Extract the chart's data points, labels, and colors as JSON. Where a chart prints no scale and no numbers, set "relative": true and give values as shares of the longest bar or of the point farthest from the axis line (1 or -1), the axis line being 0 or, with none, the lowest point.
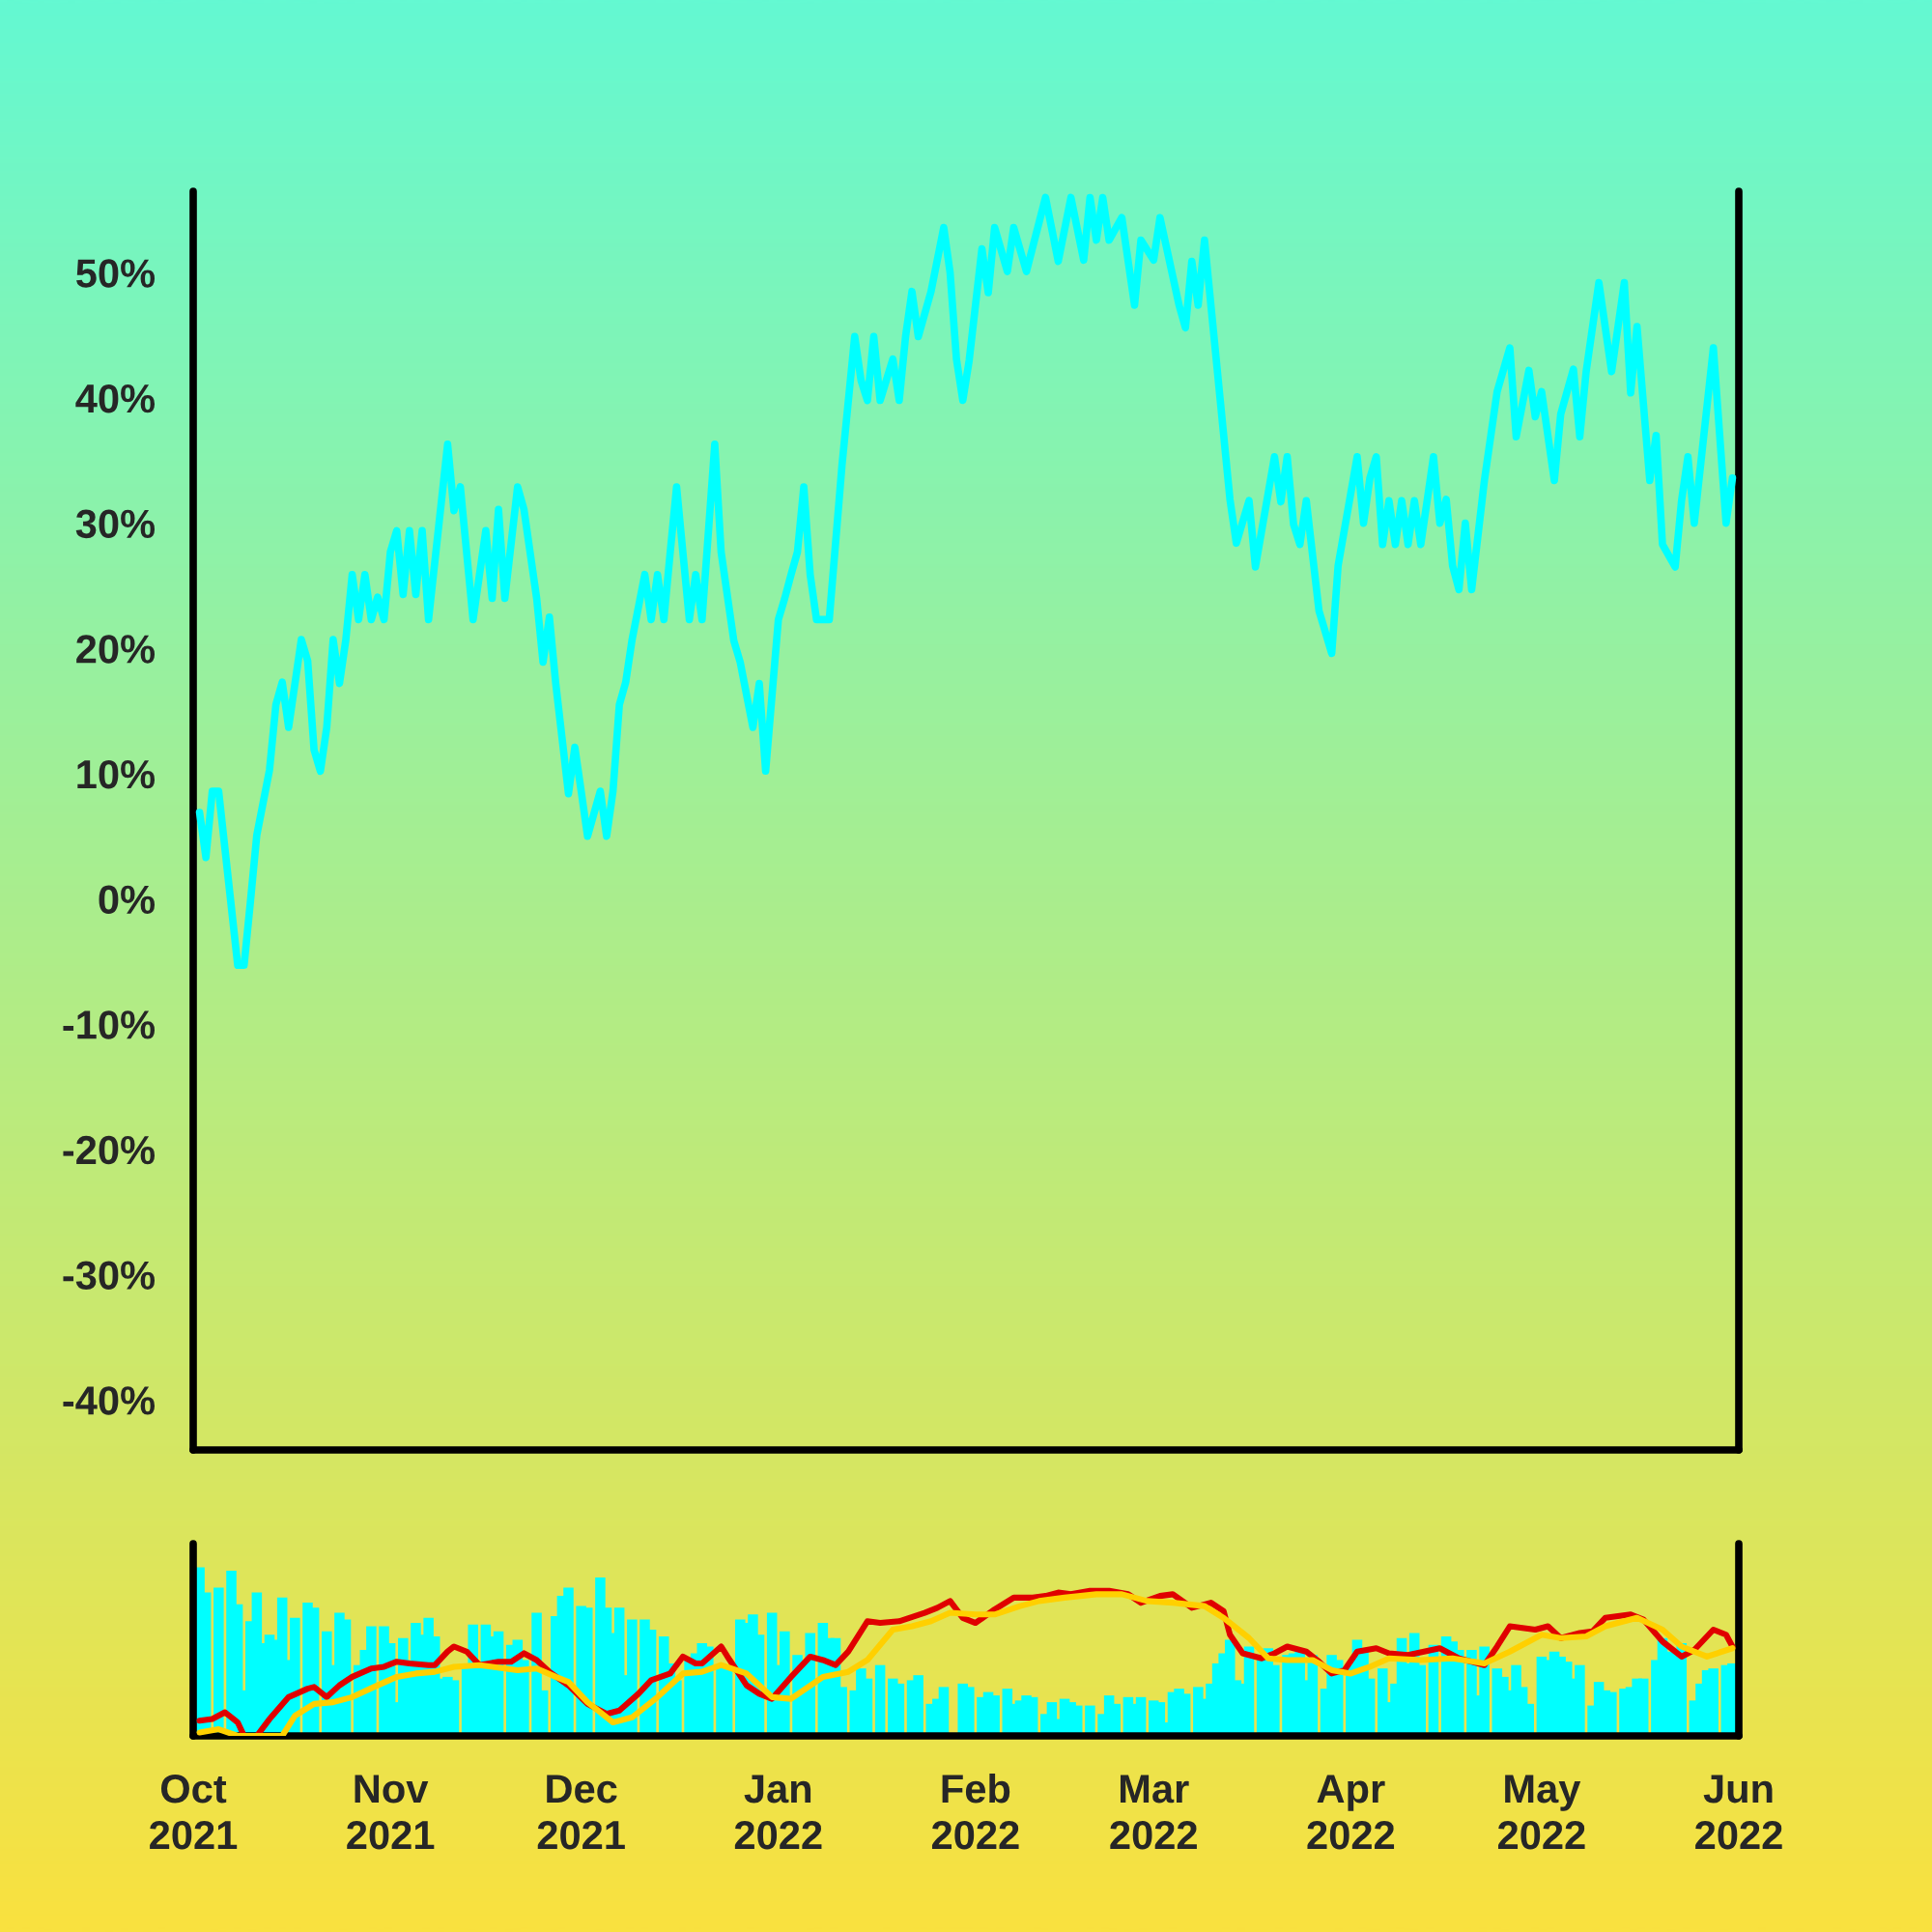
{
  "chart_data": [
    {
      "type": "line",
      "tick_labels": "y",
      "xlim": [
        "2021-10-01",
        "2022-06-01"
      ],
      "ylim": [
        -44,
        56.5
      ],
      "yticks": [
        {
          "value": -40,
          "label": "-40%"
        },
        {
          "value": -30,
          "label": "-30%"
        },
        {
          "value": -20,
          "label": "-20%"
        },
        {
          "value": -10,
          "label": "-10%"
        },
        {
          "value": 0,
          "label": "0%"
        },
        {
          "value": 10,
          "label": "10%"
        },
        {
          "value": 20,
          "label": "20%"
        },
        {
          "value": 30,
          "label": "30%"
        },
        {
          "value": 40,
          "label": "40%"
        },
        {
          "value": 50,
          "label": "50%"
        }
      ],
      "x": [
        "2021-10-02",
        "2021-10-03",
        "2021-10-04",
        "2021-10-05",
        "2021-10-08",
        "2021-10-09",
        "2021-10-10",
        "2021-10-11",
        "2021-10-13",
        "2021-10-14",
        "2021-10-15",
        "2021-10-16",
        "2021-10-18",
        "2021-10-19",
        "2021-10-20",
        "2021-10-21",
        "2021-10-22",
        "2021-10-23",
        "2021-10-24",
        "2021-10-25",
        "2021-10-26",
        "2021-10-27",
        "2021-10-28",
        "2021-10-29",
        "2021-10-30",
        "2021-10-31",
        "2021-11-01",
        "2021-11-02",
        "2021-11-03",
        "2021-11-04",
        "2021-11-05",
        "2021-11-06",
        "2021-11-07",
        "2021-11-10",
        "2021-11-11",
        "2021-11-12",
        "2021-11-14",
        "2021-11-16",
        "2021-11-17",
        "2021-11-18",
        "2021-11-19",
        "2021-11-21",
        "2021-11-22",
        "2021-11-24",
        "2021-11-25",
        "2021-11-26",
        "2021-11-27",
        "2021-11-29",
        "2021-11-30",
        "2021-12-01",
        "2021-12-02",
        "2021-12-04",
        "2021-12-05",
        "2021-12-06",
        "2021-12-07",
        "2021-12-08",
        "2021-12-09",
        "2021-12-11",
        "2021-12-12",
        "2021-12-13",
        "2021-12-14",
        "2021-12-15",
        "2021-12-16",
        "2021-12-18",
        "2021-12-19",
        "2021-12-20",
        "2021-12-22",
        "2021-12-23",
        "2021-12-25",
        "2021-12-26",
        "2021-12-28",
        "2021-12-29",
        "2021-12-30",
        "2022-01-01",
        "2022-01-02",
        "2022-01-03",
        "2022-01-04",
        "2022-01-05",
        "2022-01-06",
        "2022-01-07",
        "2022-01-09",
        "2022-01-11",
        "2022-01-13",
        "2022-01-14",
        "2022-01-15",
        "2022-01-16",
        "2022-01-17",
        "2022-01-19",
        "2022-01-20",
        "2022-01-21",
        "2022-01-22",
        "2022-01-23",
        "2022-01-25",
        "2022-01-27",
        "2022-01-28",
        "2022-01-29",
        "2022-01-30",
        "2022-01-31",
        "2022-02-02",
        "2022-02-03",
        "2022-02-04",
        "2022-02-06",
        "2022-02-07",
        "2022-02-09",
        "2022-02-12",
        "2022-02-14",
        "2022-02-16",
        "2022-02-18",
        "2022-02-19",
        "2022-02-20",
        "2022-02-21",
        "2022-02-22",
        "2022-02-24",
        "2022-02-26",
        "2022-02-27",
        "2022-03-01",
        "2022-03-02",
        "2022-03-05",
        "2022-03-06",
        "2022-03-07",
        "2022-03-08",
        "2022-03-09",
        "2022-03-13",
        "2022-03-14",
        "2022-03-16",
        "2022-03-17",
        "2022-03-20",
        "2022-03-21",
        "2022-03-22",
        "2022-03-23",
        "2022-03-24",
        "2022-03-25",
        "2022-03-27",
        "2022-03-29",
        "2022-03-30",
        "2022-04-02",
        "2022-04-03",
        "2022-04-04",
        "2022-04-05",
        "2022-04-06",
        "2022-04-07",
        "2022-04-08",
        "2022-04-09",
        "2022-04-10",
        "2022-04-11",
        "2022-04-12",
        "2022-04-14",
        "2022-04-15",
        "2022-04-16",
        "2022-04-17",
        "2022-04-18",
        "2022-04-19",
        "2022-04-20",
        "2022-04-22",
        "2022-04-24",
        "2022-04-26",
        "2022-04-27",
        "2022-04-29",
        "2022-04-30",
        "2022-05-01",
        "2022-05-03",
        "2022-05-04",
        "2022-05-06",
        "2022-05-07",
        "2022-05-08",
        "2022-05-10",
        "2022-05-12",
        "2022-05-14",
        "2022-05-15",
        "2022-05-16",
        "2022-05-18",
        "2022-05-19",
        "2022-05-20",
        "2022-05-22",
        "2022-05-23",
        "2022-05-24",
        "2022-05-25",
        "2022-05-28",
        "2022-05-30",
        "2022-05-31"
      ],
      "series": [
        {
          "color": "#00ffff",
          "values": [
            6.9,
            3.3,
            8.6,
            8.6,
            -5.3,
            -5.3,
            -0.2,
            5.1,
            10.3,
            15.5,
            17.3,
            13.7,
            20.7,
            19,
            11.9,
            10.2,
            13.7,
            20.7,
            17.2,
            20.7,
            25.9,
            22.3,
            25.9,
            22.3,
            24.1,
            22.3,
            27.7,
            29.4,
            24.3,
            29.4,
            24.3,
            29.4,
            22.3,
            36.3,
            31,
            32.9,
            22.3,
            29.4,
            24,
            31.1,
            24,
            32.9,
            31.1,
            24,
            18.9,
            22.5,
            17.2,
            8.4,
            12.1,
            8.6,
            5,
            8.6,
            5,
            8.6,
            15.5,
            17.3,
            20.7,
            25.9,
            22.3,
            25.9,
            22.3,
            27.7,
            32.9,
            22.3,
            25.9,
            22.3,
            36.3,
            27.7,
            20.6,
            18.9,
            13.7,
            17.2,
            10.2,
            22.3,
            24,
            25.9,
            27.7,
            32.9,
            25.9,
            22.3,
            22.3,
            34.6,
            44.9,
            41.4,
            39.8,
            44.9,
            39.8,
            43.1,
            39.8,
            44.9,
            48.5,
            44.9,
            48.5,
            53.6,
            50,
            43.1,
            39.8,
            43,
            51.9,
            48.4,
            53.6,
            50.1,
            53.6,
            50.1,
            56,
            50.9,
            56,
            51,
            56,
            52.6,
            56,
            52.6,
            54.4,
            47.4,
            52.6,
            51,
            54.4,
            47.4,
            45.6,
            50.9,
            47.4,
            52.6,
            31.9,
            28.4,
            31.8,
            26.5,
            35.3,
            31.7,
            35.3,
            29.9,
            28.3,
            31.8,
            23,
            19.6,
            26.6,
            35.3,
            30,
            33.6,
            35.3,
            28.3,
            31.8,
            28.3,
            31.8,
            28.3,
            31.8,
            28.3,
            35.3,
            30,
            31.9,
            26.6,
            24.7,
            30,
            24.7,
            33.4,
            40.5,
            44,
            36.9,
            42.2,
            38.5,
            40.5,
            33.4,
            38.7,
            42.3,
            36.9,
            42.1,
            49.2,
            42.1,
            49.2,
            40.4,
            45.7,
            33.4,
            37,
            28.3,
            26.5,
            31.8,
            35.3,
            30,
            44,
            30,
            33.6
          ]
        }
      ]
    },
    {
      "type": "bar",
      "relative": true,
      "tick_labels": "x",
      "xlim": [
        "2021-10-01",
        "2022-06-01"
      ],
      "xticks": [
        {
          "value": "2021-10-01",
          "label": "Oct\n2021"
        },
        {
          "value": "2021-11-01",
          "label": "Nov\n2021"
        },
        {
          "value": "2021-12-01",
          "label": "Dec\n2021"
        },
        {
          "value": "2022-01-01",
          "label": "Jan\n2022"
        },
        {
          "value": "2022-02-01",
          "label": "Feb\n2022"
        },
        {
          "value": "2022-03-01",
          "label": "Mar\n2022"
        },
        {
          "value": "2022-04-01",
          "label": "Apr\n2022"
        },
        {
          "value": "2022-05-01",
          "label": "May\n2022"
        },
        {
          "value": "2022-06-01",
          "label": "Jun\n2022"
        }
      ],
      "series": [
        {
          "type": "bar",
          "color": "#00ffff",
          "x": [
            "2021-10-02",
            "2021-10-03",
            "2021-10-05",
            "2021-10-07",
            "2021-10-08",
            "2021-10-09",
            "2021-10-10",
            "2021-10-11",
            "2021-10-12",
            "2021-10-13",
            "2021-10-14",
            "2021-10-15",
            "2021-10-16",
            "2021-10-17",
            "2021-10-19",
            "2021-10-20",
            "2021-10-22",
            "2021-10-23",
            "2021-10-24",
            "2021-10-25",
            "2021-10-27",
            "2021-10-28",
            "2021-10-29",
            "2021-10-31",
            "2021-11-01",
            "2021-11-02",
            "2021-11-03",
            "2021-11-04",
            "2021-11-05",
            "2021-11-06",
            "2021-11-07",
            "2021-11-08",
            "2021-11-09",
            "2021-11-10",
            "2021-11-11",
            "2021-11-13",
            "2021-11-14",
            "2021-11-15",
            "2021-11-16",
            "2021-11-17",
            "2021-11-18",
            "2021-11-20",
            "2021-11-21",
            "2021-11-22",
            "2021-11-24",
            "2021-11-25",
            "2021-11-27",
            "2021-11-28",
            "2021-11-29",
            "2021-12-01",
            "2021-12-02",
            "2021-12-04",
            "2021-12-05",
            "2021-12-06",
            "2021-12-07",
            "2021-12-08",
            "2021-12-09",
            "2021-12-11",
            "2021-12-12",
            "2021-12-14",
            "2021-12-15",
            "2021-12-16",
            "2021-12-18",
            "2021-12-19",
            "2021-12-20",
            "2021-12-21",
            "2021-12-23",
            "2021-12-24",
            "2021-12-26",
            "2021-12-27",
            "2021-12-28",
            "2021-12-29",
            "2021-12-31",
            "2022-01-01",
            "2022-01-02",
            "2022-01-04",
            "2022-01-05",
            "2022-01-06",
            "2022-01-08",
            "2022-01-09",
            "2022-01-10",
            "2022-01-11",
            "2022-01-13",
            "2022-01-14",
            "2022-01-15",
            "2022-01-17",
            "2022-01-19",
            "2022-01-20",
            "2022-01-22",
            "2022-01-23",
            "2022-01-25",
            "2022-01-26",
            "2022-01-27",
            "2022-01-30",
            "2022-01-31",
            "2022-02-02",
            "2022-02-03",
            "2022-02-04",
            "2022-02-06",
            "2022-02-07",
            "2022-02-08",
            "2022-02-09",
            "2022-02-10",
            "2022-02-12",
            "2022-02-13",
            "2022-02-14",
            "2022-02-15",
            "2022-02-16",
            "2022-02-17",
            "2022-02-19",
            "2022-02-21",
            "2022-02-22",
            "2022-02-23",
            "2022-02-25",
            "2022-02-26",
            "2022-02-27",
            "2022-03-01",
            "2022-03-02",
            "2022-03-03",
            "2022-03-04",
            "2022-03-05",
            "2022-03-06",
            "2022-03-08",
            "2022-03-09",
            "2022-03-10",
            "2022-03-11",
            "2022-03-12",
            "2022-03-13",
            "2022-03-14",
            "2022-03-15",
            "2022-03-16",
            "2022-03-18",
            "2022-03-19",
            "2022-03-20",
            "2022-03-22",
            "2022-03-23",
            "2022-03-24",
            "2022-03-25",
            "2022-03-26",
            "2022-03-28",
            "2022-03-29",
            "2022-03-30",
            "2022-04-01",
            "2022-04-02",
            "2022-04-03",
            "2022-04-04",
            "2022-04-06",
            "2022-04-07",
            "2022-04-08",
            "2022-04-09",
            "2022-04-10",
            "2022-04-11",
            "2022-04-12",
            "2022-04-14",
            "2022-04-16",
            "2022-04-17",
            "2022-04-18",
            "2022-04-20",
            "2022-04-21",
            "2022-04-22",
            "2022-04-24",
            "2022-04-25",
            "2022-04-26",
            "2022-04-27",
            "2022-04-28",
            "2022-04-29",
            "2022-05-01",
            "2022-05-02",
            "2022-05-03",
            "2022-05-04",
            "2022-05-05",
            "2022-05-06",
            "2022-05-07",
            "2022-05-09",
            "2022-05-10",
            "2022-05-11",
            "2022-05-12",
            "2022-05-14",
            "2022-05-15",
            "2022-05-16",
            "2022-05-17",
            "2022-05-19",
            "2022-05-20",
            "2022-05-21",
            "2022-05-22",
            "2022-05-23",
            "2022-05-25",
            "2022-05-26",
            "2022-05-27",
            "2022-05-28",
            "2022-05-30",
            "2022-05-31"
          ],
          "values": [
            1.0,
            0.85,
            0.88,
            0.98,
            0.78,
            0.27,
            0.68,
            0.85,
            0.55,
            0.6,
            0.57,
            0.82,
            0.45,
            0.7,
            0.79,
            0.76,
            0.62,
            0.42,
            0.73,
            0.69,
            0.42,
            0.51,
            0.65,
            0.65,
            0.55,
            0.2,
            0.58,
            0.45,
            0.67,
            0.6,
            0.7,
            0.59,
            0.34,
            0.35,
            0.33,
            0.42,
            0.66,
            0.42,
            0.66,
            0.59,
            0.62,
            0.54,
            0.57,
            0.45,
            0.73,
            0.27,
            0.71,
            0.83,
            0.88,
            0.77,
            0.76,
            0.94,
            0.76,
            0.61,
            0.76,
            0.36,
            0.69,
            0.69,
            0.63,
            0.59,
            0.43,
            0.33,
            0.45,
            0.49,
            0.55,
            0.53,
            0.42,
            0.42,
            0.69,
            0.67,
            0.72,
            0.6,
            0.73,
            0.42,
            0.62,
            0.48,
            0.42,
            0.61,
            0.67,
            0.58,
            0.58,
            0.29,
            0.27,
            0.4,
            0.34,
            0.42,
            0.34,
            0.31,
            0.33,
            0.36,
            0.19,
            0.22,
            0.29,
            0.31,
            0.29,
            0.23,
            0.26,
            0.24,
            0.28,
            0.19,
            0.21,
            0.24,
            0.23,
            0.13,
            0.2,
            0.1,
            0.22,
            0.2,
            0.18,
            0.18,
            0.13,
            0.24,
            0.19,
            0.23,
            0.19,
            0.23,
            0.21,
            0.2,
            0.08,
            0.26,
            0.28,
            0.25,
            0.29,
            0.22,
            0.31,
            0.43,
            0.49,
            0.57,
            0.33,
            0.31,
            0.53,
            0.45,
            0.52,
            0.42,
            0.48,
            0.49,
            0.51,
            0.33,
            0.48,
            0.28,
            0.48,
            0.45,
            0.42,
            0.57,
            0.51,
            0.34,
            0.4,
            0.2,
            0.31,
            0.58,
            0.43,
            0.61,
            0.42,
            0.54,
            0.59,
            0.56,
            0.51,
            0.51,
            0.24,
            0.53,
            0.4,
            0.35,
            0.27,
            0.42,
            0.29,
            0.19,
            0.47,
            0.45,
            0.5,
            0.47,
            0.44,
            0.34,
            0.42,
            0.18,
            0.32,
            0.27,
            0.26,
            0.28,
            0.29,
            0.34,
            0.34,
            0.45,
            0.58,
            0.5,
            0.49,
            0.55,
            0.21,
            0.31,
            0.39,
            0.4,
            0.42,
            0.43
          ]
        },
        {
          "type": "line",
          "color": "#e00000",
          "x": [
            "2021-10-02",
            "2021-10-04",
            "2021-10-06",
            "2021-10-08",
            "2021-10-09",
            "2021-10-11",
            "2021-10-13",
            "2021-10-16",
            "2021-10-19",
            "2021-10-20",
            "2021-10-22",
            "2021-10-24",
            "2021-10-26",
            "2021-10-29",
            "2021-10-31",
            "2021-11-02",
            "2021-11-04",
            "2021-11-07",
            "2021-11-08",
            "2021-11-10",
            "2021-11-11",
            "2021-11-13",
            "2021-11-15",
            "2021-11-18",
            "2021-11-20",
            "2021-11-22",
            "2021-11-24",
            "2021-11-26",
            "2021-11-29",
            "2021-12-02",
            "2021-12-05",
            "2021-12-07",
            "2021-12-10",
            "2021-12-12",
            "2021-12-15",
            "2021-12-17",
            "2021-12-19",
            "2021-12-20",
            "2021-12-23",
            "2021-12-24",
            "2021-12-27",
            "2021-12-29",
            "2021-12-31",
            "2022-01-03",
            "2022-01-06",
            "2022-01-08",
            "2022-01-10",
            "2022-01-12",
            "2022-01-15",
            "2022-01-17",
            "2022-01-20",
            "2022-01-24",
            "2022-01-26",
            "2022-01-28",
            "2022-01-30",
            "2022-02-01",
            "2022-02-04",
            "2022-02-07",
            "2022-02-10",
            "2022-02-12",
            "2022-02-14",
            "2022-02-16",
            "2022-02-19",
            "2022-02-22",
            "2022-02-25",
            "2022-02-27",
            "2022-03-02",
            "2022-03-04",
            "2022-03-07",
            "2022-03-10",
            "2022-03-12",
            "2022-03-13",
            "2022-03-15",
            "2022-03-18",
            "2022-03-20",
            "2022-03-22",
            "2022-03-25",
            "2022-03-27",
            "2022-03-29",
            "2022-03-31",
            "2022-04-02",
            "2022-04-05",
            "2022-04-07",
            "2022-04-10",
            "2022-04-15",
            "2022-04-18",
            "2022-04-22",
            "2022-04-24",
            "2022-04-26",
            "2022-04-30",
            "2022-05-02",
            "2022-05-04",
            "2022-05-07",
            "2022-05-09",
            "2022-05-11",
            "2022-05-15",
            "2022-05-17",
            "2022-05-20",
            "2022-05-23",
            "2022-05-25",
            "2022-05-28",
            "2022-05-30",
            "2022-05-31"
          ],
          "values": [
            0.09,
            0.1,
            0.14,
            0.08,
            0,
            0,
            0.1,
            0.23,
            0.28,
            0.29,
            0.23,
            0.3,
            0.35,
            0.4,
            0.41,
            0.44,
            0.43,
            0.42,
            0.42,
            0.5,
            0.53,
            0.5,
            0.42,
            0.44,
            0.44,
            0.49,
            0.45,
            0.38,
            0.3,
            0.19,
            0.13,
            0.15,
            0.25,
            0.33,
            0.37,
            0.47,
            0.43,
            0.43,
            0.53,
            0.47,
            0.3,
            0.25,
            0.22,
            0.35,
            0.47,
            0.45,
            0.42,
            0.5,
            0.68,
            0.67,
            0.68,
            0.73,
            0.76,
            0.8,
            0.7,
            0.67,
            0.75,
            0.82,
            0.82,
            0.83,
            0.85,
            0.84,
            0.86,
            0.86,
            0.84,
            0.79,
            0.83,
            0.84,
            0.76,
            0.79,
            0.74,
            0.6,
            0.49,
            0.46,
            0.49,
            0.53,
            0.5,
            0.44,
            0.37,
            0.39,
            0.5,
            0.52,
            0.49,
            0.48,
            0.52,
            0.46,
            0.42,
            0.53,
            0.65,
            0.63,
            0.65,
            0.58,
            0.61,
            0.62,
            0.7,
            0.72,
            0.69,
            0.56,
            0.47,
            0.51,
            0.63,
            0.6,
            0.53
          ]
        },
        {
          "type": "line",
          "color": "#ffd000",
          "x": [
            "2021-10-02",
            "2021-10-05",
            "2021-10-08",
            "2021-10-15",
            "2021-10-17",
            "2021-10-20",
            "2021-10-23",
            "2021-10-26",
            "2021-10-30",
            "2021-11-02",
            "2021-11-05",
            "2021-11-08",
            "2021-11-11",
            "2021-11-15",
            "2021-11-19",
            "2021-11-21",
            "2021-11-24",
            "2021-11-27",
            "2021-11-29",
            "2021-12-02",
            "2021-12-06",
            "2021-12-09",
            "2021-12-13",
            "2021-12-17",
            "2021-12-20",
            "2021-12-23",
            "2021-12-27",
            "2021-12-31",
            "2022-01-03",
            "2022-01-08",
            "2022-01-12",
            "2022-01-15",
            "2022-01-19",
            "2022-01-22",
            "2022-01-25",
            "2022-01-28",
            "2022-02-01",
            "2022-02-04",
            "2022-02-08",
            "2022-02-11",
            "2022-02-15",
            "2022-02-20",
            "2022-02-24",
            "2022-02-28",
            "2022-03-04",
            "2022-03-09",
            "2022-03-12",
            "2022-03-16",
            "2022-03-19",
            "2022-03-22",
            "2022-03-26",
            "2022-03-29",
            "2022-04-01",
            "2022-04-04",
            "2022-04-07",
            "2022-04-12",
            "2022-04-17",
            "2022-04-22",
            "2022-04-26",
            "2022-05-01",
            "2022-05-04",
            "2022-05-08",
            "2022-05-11",
            "2022-05-16",
            "2022-05-20",
            "2022-05-23",
            "2022-05-27",
            "2022-05-31"
          ],
          "values": [
            0.02,
            0.04,
            0,
            0,
            0.12,
            0.19,
            0.2,
            0.23,
            0.3,
            0.35,
            0.37,
            0.38,
            0.41,
            0.42,
            0.4,
            0.39,
            0.4,
            0.35,
            0.32,
            0.2,
            0.08,
            0.11,
            0.23,
            0.37,
            0.38,
            0.42,
            0.37,
            0.23,
            0.22,
            0.35,
            0.38,
            0.45,
            0.63,
            0.65,
            0.68,
            0.73,
            0.72,
            0.72,
            0.77,
            0.8,
            0.82,
            0.84,
            0.84,
            0.8,
            0.79,
            0.77,
            0.7,
            0.58,
            0.46,
            0.45,
            0.45,
            0.39,
            0.37,
            0.41,
            0.46,
            0.45,
            0.46,
            0.43,
            0.5,
            0.6,
            0.58,
            0.59,
            0.65,
            0.7,
            0.63,
            0.53,
            0.47,
            0.52
          ]
        }
      ]
    }
  ]
}
